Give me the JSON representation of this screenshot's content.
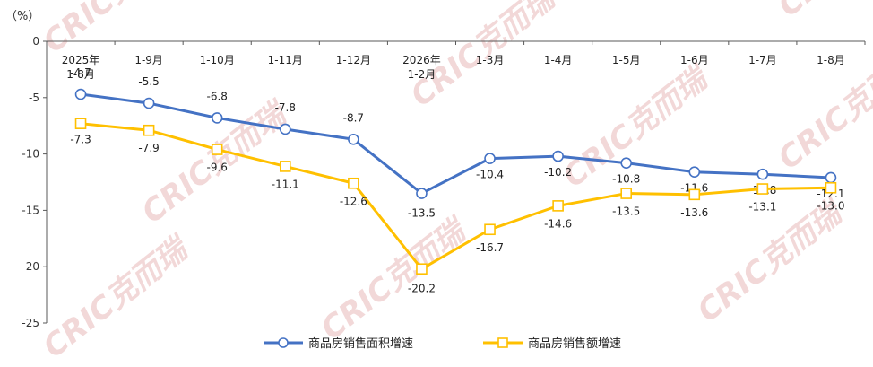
{
  "chart_data": {
    "type": "line",
    "unit_label": "（%）",
    "categories": [
      [
        "2025年",
        "1-8月"
      ],
      [
        "1-9月"
      ],
      [
        "1-10月"
      ],
      [
        "1-11月"
      ],
      [
        "1-12月"
      ],
      [
        "2026年",
        "1-2月"
      ],
      [
        "1-3月"
      ],
      [
        "1-4月"
      ],
      [
        "1-5月"
      ],
      [
        "1-6月"
      ],
      [
        "1-7月"
      ],
      [
        "1-8月"
      ]
    ],
    "series": [
      {
        "name": "商品房销售面积增速",
        "color": "#4472c4",
        "marker": "circle",
        "values": [
          -4.7,
          -5.5,
          -6.8,
          -7.8,
          -8.7,
          -13.5,
          -10.4,
          -10.2,
          -10.8,
          -11.6,
          -11.8,
          -12.1
        ],
        "labels": [
          "-4.7",
          "-5.5",
          "-6.8",
          "-7.8",
          "-8.7",
          "-13.5",
          "-10.4",
          "-10.2",
          "-10.8",
          "-11.6",
          "-11.8",
          "-12.1"
        ]
      },
      {
        "name": "商品房销售额增速",
        "color": "#ffc000",
        "marker": "square",
        "values": [
          -7.3,
          -7.9,
          -9.6,
          -11.1,
          -12.6,
          -20.2,
          -16.7,
          -14.6,
          -13.5,
          -13.6,
          -13.1,
          -13.0
        ],
        "labels": [
          "-7.3",
          "-7.9",
          "-9.6",
          "-11.1",
          "-12.6",
          "-20.2",
          "-16.7",
          "-14.6",
          "-13.5",
          "-13.6",
          "-13.1",
          "-13.0"
        ]
      }
    ],
    "yticks": [
      "0",
      "-5",
      "-10",
      "-15",
      "-20",
      "-25"
    ],
    "ylim": [
      -25,
      0
    ],
    "grid": false,
    "legend_position": "bottom"
  },
  "watermark": {
    "text": "CRIC克而瑞",
    "color": "#e8b8b8"
  }
}
